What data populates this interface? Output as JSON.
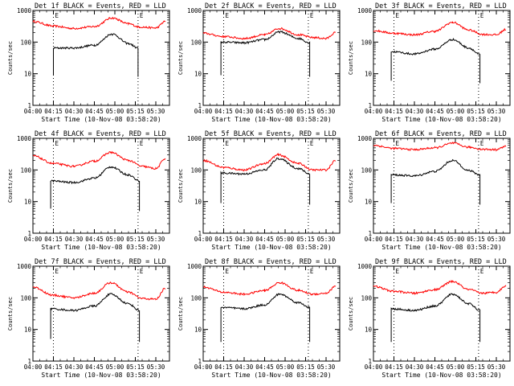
{
  "chart_data": [
    {
      "type": "line",
      "title": "Det 1f BLACK = Events, RED = LLD",
      "xlabel": "Start Time (10-Nov-08 03:58:20)",
      "ylabel": "Counts/sec",
      "yscale": "log",
      "ylim": [
        1,
        1000
      ],
      "x_ticks": [
        "04:00",
        "04:15",
        "04:30",
        "04:45",
        "05:00",
        "05:15",
        "05:30"
      ],
      "y_ticks": [
        "1",
        "10",
        "100",
        "1000"
      ],
      "markers": [
        "E",
        "E"
      ],
      "series": [
        {
          "color": "#ff0000",
          "x": [
            "04:00",
            "04:15",
            "04:30",
            "04:45",
            "04:58",
            "05:10",
            "05:18",
            "05:30",
            "05:37"
          ],
          "y": [
            450,
            320,
            270,
            310,
            580,
            380,
            300,
            280,
            450
          ]
        },
        {
          "color": "#000000",
          "x": [
            "04:15",
            "04:15",
            "04:30",
            "04:45",
            "04:58",
            "05:10",
            "05:17",
            "05:17"
          ],
          "y": [
            9,
            65,
            65,
            80,
            180,
            90,
            65,
            8
          ]
        }
      ]
    },
    {
      "type": "line",
      "title": "Det 2f BLACK = Events, RED = LLD",
      "xlabel": "Start Time (10-Nov-08 03:58:20)",
      "ylabel": "Counts/sec",
      "yscale": "log",
      "ylim": [
        1,
        1000
      ],
      "x_ticks": [
        "04:00",
        "04:15",
        "04:30",
        "04:45",
        "05:00",
        "05:15",
        "05:30"
      ],
      "y_ticks": [
        "1",
        "10",
        "100",
        "1000"
      ],
      "markers": [
        "E",
        "E"
      ],
      "series": [
        {
          "color": "#ff0000",
          "x": [
            "04:00",
            "04:15",
            "04:30",
            "04:45",
            "04:56",
            "05:10",
            "05:20",
            "05:30",
            "05:37"
          ],
          "y": [
            190,
            150,
            130,
            170,
            270,
            170,
            140,
            130,
            200
          ]
        },
        {
          "color": "#000000",
          "x": [
            "04:13",
            "04:13",
            "04:30",
            "04:45",
            "04:56",
            "05:10",
            "05:18",
            "05:18"
          ],
          "y": [
            9,
            100,
            95,
            120,
            210,
            130,
            95,
            8
          ]
        }
      ]
    },
    {
      "type": "line",
      "title": "Det 3f BLACK = Events, RED = LLD",
      "xlabel": "Start Time (10-Nov-08 03:58:20)",
      "ylabel": "Counts/sec",
      "yscale": "log",
      "ylim": [
        1,
        1000
      ],
      "x_ticks": [
        "04:00",
        "04:15",
        "04:30",
        "04:45",
        "05:00",
        "05:15",
        "05:30"
      ],
      "y_ticks": [
        "1",
        "10",
        "100",
        "1000"
      ],
      "markers": [
        "E",
        "E"
      ],
      "series": [
        {
          "color": "#ff0000",
          "x": [
            "04:00",
            "04:15",
            "04:30",
            "04:45",
            "04:58",
            "05:10",
            "05:20",
            "05:30",
            "05:37"
          ],
          "y": [
            230,
            190,
            170,
            220,
            420,
            240,
            175,
            170,
            250
          ]
        },
        {
          "color": "#000000",
          "x": [
            "04:13",
            "04:13",
            "04:30",
            "04:45",
            "04:58",
            "05:10",
            "05:18",
            "05:18"
          ],
          "y": [
            6,
            50,
            42,
            60,
            120,
            65,
            40,
            5
          ]
        }
      ]
    },
    {
      "type": "line",
      "title": "Det 4f BLACK = Events, RED = LLD",
      "xlabel": "Start Time (10-Nov-08 03:58:20)",
      "ylabel": "Counts/sec",
      "yscale": "log",
      "ylim": [
        1,
        1000
      ],
      "x_ticks": [
        "04:00",
        "04:15",
        "04:30",
        "04:45",
        "05:00",
        "05:15",
        "05:30"
      ],
      "y_ticks": [
        "1",
        "10",
        "100",
        "1000"
      ],
      "markers": [
        "E",
        "E"
      ],
      "series": [
        {
          "color": "#ff0000",
          "x": [
            "04:00",
            "04:15",
            "04:30",
            "04:45",
            "04:57",
            "05:10",
            "05:20",
            "05:30",
            "05:37"
          ],
          "y": [
            280,
            160,
            130,
            190,
            360,
            200,
            130,
            110,
            230
          ]
        },
        {
          "color": "#000000",
          "x": [
            "04:13",
            "04:13",
            "04:30",
            "04:45",
            "04:57",
            "05:10",
            "05:18",
            "05:18"
          ],
          "y": [
            6,
            45,
            40,
            55,
            125,
            70,
            45,
            5
          ]
        }
      ]
    },
    {
      "type": "line",
      "title": "Det 5f BLACK = Events, RED = LLD",
      "xlabel": "Start Time (10-Nov-08 03:58:20)",
      "ylabel": "Counts/sec",
      "yscale": "log",
      "ylim": [
        1,
        1000
      ],
      "x_ticks": [
        "04:00",
        "04:15",
        "04:30",
        "04:45",
        "05:00",
        "05:15",
        "05:30"
      ],
      "y_ticks": [
        "1",
        "10",
        "100",
        "1000"
      ],
      "markers": [
        "E",
        "E"
      ],
      "series": [
        {
          "color": "#ff0000",
          "x": [
            "04:00",
            "04:15",
            "04:30",
            "04:45",
            "04:55",
            "05:10",
            "05:20",
            "05:30",
            "05:37"
          ],
          "y": [
            200,
            120,
            100,
            160,
            300,
            160,
            100,
            100,
            200
          ]
        },
        {
          "color": "#000000",
          "x": [
            "04:13",
            "04:13",
            "04:30",
            "04:45",
            "04:55",
            "05:10",
            "05:18",
            "05:18"
          ],
          "y": [
            9,
            80,
            75,
            100,
            230,
            110,
            75,
            8
          ]
        }
      ]
    },
    {
      "type": "line",
      "title": "Det 6f BLACK = Events, RED = LLD",
      "xlabel": "Start Time (10-Nov-08 03:58:20)",
      "ylabel": "Counts/sec",
      "yscale": "log",
      "ylim": [
        1,
        1000
      ],
      "x_ticks": [
        "04:00",
        "04:15",
        "04:30",
        "04:45",
        "05:00",
        "05:15",
        "05:30"
      ],
      "y_ticks": [
        "1",
        "10",
        "100",
        "1000"
      ],
      "markers": [
        "E",
        "E"
      ],
      "series": [
        {
          "color": "#ff0000",
          "x": [
            "04:00",
            "04:15",
            "04:30",
            "04:45",
            "04:58",
            "05:10",
            "05:20",
            "05:30",
            "05:37"
          ],
          "y": [
            600,
            480,
            440,
            500,
            700,
            520,
            450,
            440,
            560
          ]
        },
        {
          "color": "#000000",
          "x": [
            "04:13",
            "04:13",
            "04:30",
            "04:45",
            "04:58",
            "05:10",
            "05:18",
            "05:18"
          ],
          "y": [
            9,
            70,
            65,
            90,
            200,
            95,
            70,
            8
          ]
        }
      ]
    },
    {
      "type": "line",
      "title": "Det 7f BLACK = Events, RED = LLD",
      "xlabel": "Start Time (10-Nov-08 03:58:20)",
      "ylabel": "Counts/sec",
      "yscale": "log",
      "ylim": [
        1,
        1000
      ],
      "x_ticks": [
        "04:00",
        "04:15",
        "04:30",
        "04:45",
        "05:00",
        "05:15",
        "05:30"
      ],
      "y_ticks": [
        "1",
        "10",
        "100",
        "1000"
      ],
      "markers": [
        "E",
        "E"
      ],
      "series": [
        {
          "color": "#ff0000",
          "x": [
            "04:00",
            "04:15",
            "04:30",
            "04:45",
            "04:57",
            "05:10",
            "05:20",
            "05:30",
            "05:37"
          ],
          "y": [
            220,
            120,
            100,
            140,
            300,
            150,
            95,
            90,
            200
          ]
        },
        {
          "color": "#000000",
          "x": [
            "04:13",
            "04:13",
            "04:30",
            "04:45",
            "04:57",
            "05:10",
            "05:18",
            "05:18"
          ],
          "y": [
            5,
            45,
            40,
            55,
            130,
            65,
            40,
            4
          ]
        }
      ]
    },
    {
      "type": "line",
      "title": "Det 8f BLACK = Events, RED = LLD",
      "xlabel": "Start Time (10-Nov-08 03:58:20)",
      "ylabel": "Counts/sec",
      "yscale": "log",
      "ylim": [
        1,
        1000
      ],
      "x_ticks": [
        "04:00",
        "04:15",
        "04:30",
        "04:45",
        "05:00",
        "05:15",
        "05:30"
      ],
      "y_ticks": [
        "1",
        "10",
        "100",
        "1000"
      ],
      "markers": [
        "E",
        "E"
      ],
      "series": [
        {
          "color": "#ff0000",
          "x": [
            "04:00",
            "04:15",
            "04:30",
            "04:45",
            "04:56",
            "05:10",
            "05:20",
            "05:30",
            "05:37"
          ],
          "y": [
            220,
            150,
            130,
            170,
            300,
            170,
            130,
            140,
            230
          ]
        },
        {
          "color": "#000000",
          "x": [
            "04:13",
            "04:13",
            "04:30",
            "04:45",
            "04:56",
            "05:10",
            "05:18",
            "05:18"
          ],
          "y": [
            4,
            50,
            45,
            60,
            130,
            70,
            50,
            4
          ]
        }
      ]
    },
    {
      "type": "line",
      "title": "Det 9f BLACK = Events, RED = LLD",
      "xlabel": "Start Time (10-Nov-08 03:58:20)",
      "ylabel": "Counts/sec",
      "yscale": "log",
      "ylim": [
        1,
        1000
      ],
      "x_ticks": [
        "04:00",
        "04:15",
        "04:30",
        "04:45",
        "05:00",
        "05:15",
        "05:30"
      ],
      "y_ticks": [
        "1",
        "10",
        "100",
        "1000"
      ],
      "markers": [
        "E",
        "E"
      ],
      "series": [
        {
          "color": "#ff0000",
          "x": [
            "04:00",
            "04:15",
            "04:30",
            "04:45",
            "04:58",
            "05:10",
            "05:20",
            "05:30",
            "05:37"
          ],
          "y": [
            230,
            160,
            140,
            180,
            330,
            180,
            140,
            150,
            240
          ]
        },
        {
          "color": "#000000",
          "x": [
            "04:13",
            "04:13",
            "04:30",
            "04:45",
            "04:58",
            "05:10",
            "05:18",
            "05:18"
          ],
          "y": [
            4,
            45,
            40,
            55,
            130,
            65,
            40,
            4
          ]
        }
      ]
    }
  ]
}
